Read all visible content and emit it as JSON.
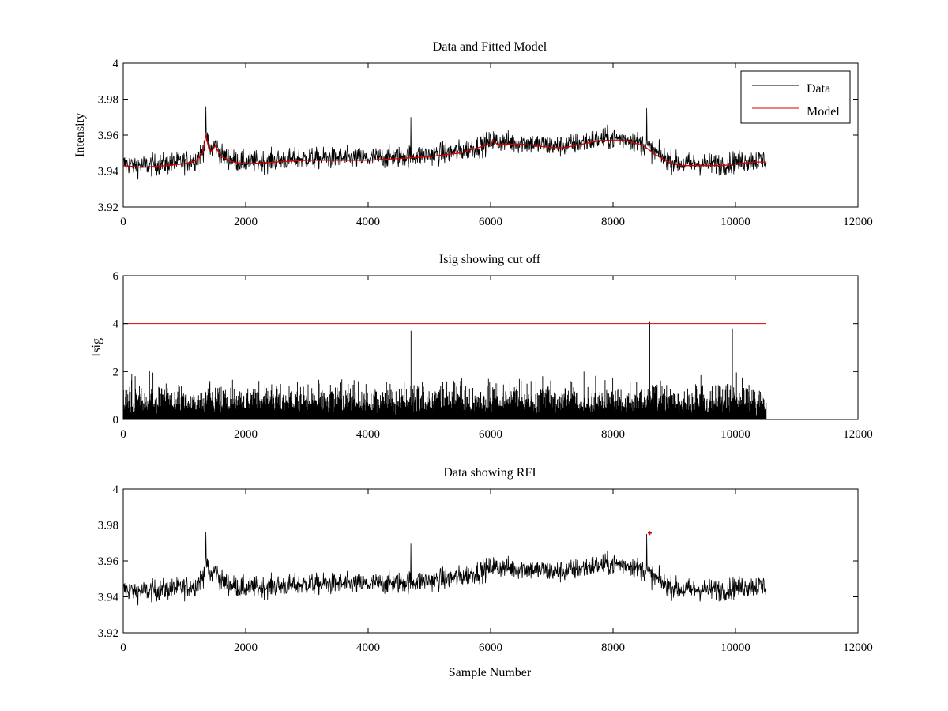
{
  "colors": {
    "data": "#000000",
    "model": "#d40000",
    "threshold": "#d40000",
    "rfi": "#d40000",
    "axes": "#000000"
  },
  "chart_data": [
    {
      "type": "line",
      "title": "Data and Fitted Model",
      "xlabel": "",
      "ylabel": "Intensity",
      "xlim": [
        0,
        12000
      ],
      "ylim": [
        3.92,
        4.0
      ],
      "xticks": [
        "0",
        "2000",
        "4000",
        "6000",
        "8000",
        "10000",
        "12000"
      ],
      "yticks": [
        "3.92",
        "3.94",
        "3.96",
        "3.98",
        "4"
      ],
      "legend": {
        "position": "top-right",
        "entries": [
          "Data",
          "Model"
        ]
      },
      "grid": false,
      "series": [
        {
          "name": "Data",
          "kind": "noisy",
          "noise_amplitude": 0.008,
          "spikes": [
            [
              1350,
              3.976
            ],
            [
              4700,
              3.97
            ],
            [
              8550,
              3.975
            ]
          ]
        },
        {
          "name": "Model",
          "x": [
            0,
            300,
            700,
            1000,
            1200,
            1300,
            1350,
            1400,
            1450,
            1500,
            1600,
            1800,
            2000,
            2500,
            3000,
            3500,
            4000,
            4500,
            5000,
            5500,
            5800,
            6000,
            6050,
            6100,
            6500,
            7000,
            7200,
            7500,
            7800,
            8000,
            8200,
            8500,
            8700,
            8900,
            9100,
            9500,
            9800,
            10000,
            10300,
            10500
          ],
          "y": [
            3.943,
            3.942,
            3.943,
            3.944,
            3.946,
            3.95,
            3.96,
            3.952,
            3.951,
            3.954,
            3.948,
            3.945,
            3.944,
            3.945,
            3.946,
            3.946,
            3.946,
            3.947,
            3.948,
            3.95,
            3.953,
            3.955,
            3.957,
            3.955,
            3.955,
            3.953,
            3.953,
            3.955,
            3.957,
            3.957,
            3.957,
            3.954,
            3.949,
            3.945,
            3.943,
            3.943,
            3.943,
            3.944,
            3.945,
            3.945
          ]
        }
      ]
    },
    {
      "type": "line",
      "title": "Isig showing cut off",
      "xlabel": "",
      "ylabel": "Isig",
      "xlim": [
        0,
        12000
      ],
      "ylim": [
        0,
        6
      ],
      "xticks": [
        "0",
        "2000",
        "4000",
        "6000",
        "8000",
        "10000",
        "12000"
      ],
      "yticks": [
        "0",
        "2",
        "4",
        "6"
      ],
      "grid": false,
      "series": [
        {
          "name": "Isig",
          "kind": "abs-noise",
          "spikes": [
            [
              4700,
              3.7
            ],
            [
              8600,
              4.1
            ],
            [
              9950,
              3.8
            ]
          ]
        },
        {
          "name": "Cut off",
          "x": [
            0,
            10500
          ],
          "y": [
            4,
            4
          ]
        }
      ]
    },
    {
      "type": "line",
      "title": "Data showing RFI",
      "xlabel": "Sample Number",
      "ylabel": "",
      "xlim": [
        0,
        12000
      ],
      "ylim": [
        3.92,
        4.0
      ],
      "xticks": [
        "0",
        "2000",
        "4000",
        "6000",
        "8000",
        "10000",
        "12000"
      ],
      "yticks": [
        "3.92",
        "3.94",
        "3.96",
        "3.98",
        "4"
      ],
      "grid": false,
      "series": [
        {
          "name": "Data",
          "kind": "noisy",
          "noise_amplitude": 0.008,
          "spikes": [
            [
              1350,
              3.976
            ],
            [
              4700,
              3.97
            ],
            [
              8550,
              3.975
            ]
          ]
        },
        {
          "name": "RFI",
          "kind": "markers",
          "x": [
            8600
          ],
          "y": [
            3.9755
          ]
        }
      ]
    }
  ]
}
